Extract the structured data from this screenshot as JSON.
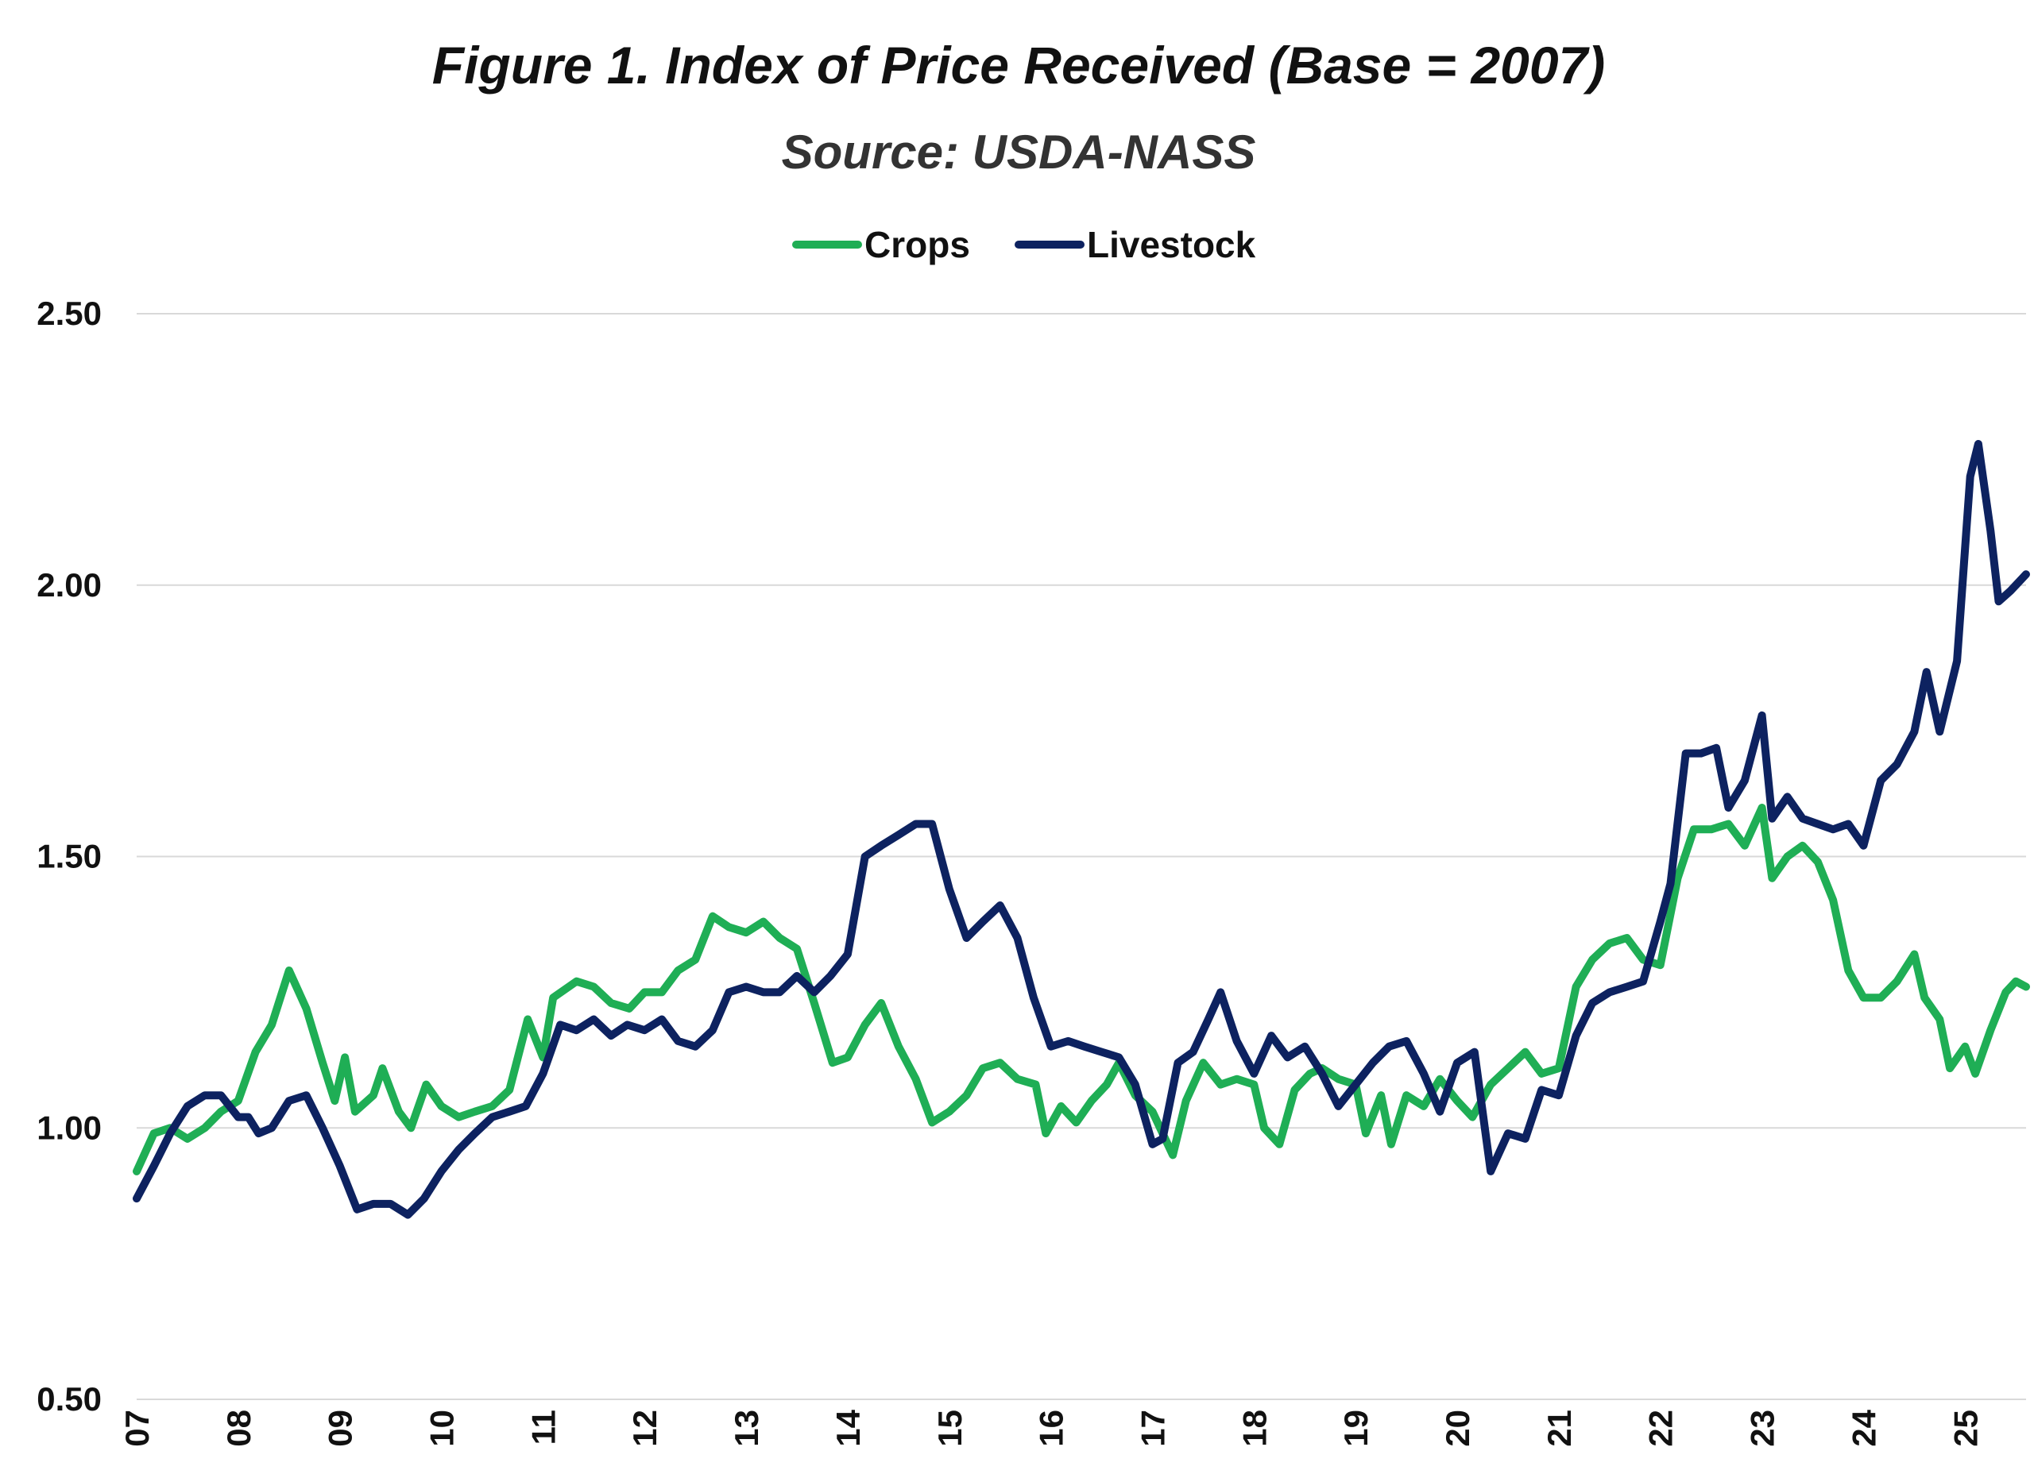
{
  "chart_data": {
    "type": "line",
    "title": "Figure 1.  Index of Price Received (Base = 2007)",
    "subtitle": "Source:  USDA-NASS",
    "xlabel": "",
    "ylabel": "",
    "x_tick_labels": [
      "07",
      "08",
      "09",
      "10",
      "11",
      "12",
      "13",
      "14",
      "15",
      "16",
      "17",
      "18",
      "19",
      "20",
      "21",
      "22",
      "23",
      "24",
      "25"
    ],
    "x_range": [
      2007,
      2025.6
    ],
    "ylim": [
      0.5,
      2.5
    ],
    "y_ticks": [
      0.5,
      1.0,
      1.5,
      2.0,
      2.5
    ],
    "y_tick_labels": [
      "0.50",
      "1.00",
      "1.50",
      "2.00",
      "2.50"
    ],
    "grid": "horizontal",
    "legend_position": "top-center",
    "series": [
      {
        "name": "Crops",
        "color": "#1fae55",
        "points": [
          [
            2007.0,
            0.92
          ],
          [
            2007.17,
            0.99
          ],
          [
            2007.33,
            1.0
          ],
          [
            2007.5,
            0.98
          ],
          [
            2007.67,
            1.0
          ],
          [
            2007.83,
            1.03
          ],
          [
            2008.0,
            1.05
          ],
          [
            2008.17,
            1.14
          ],
          [
            2008.33,
            1.19
          ],
          [
            2008.5,
            1.29
          ],
          [
            2008.67,
            1.22
          ],
          [
            2008.83,
            1.12
          ],
          [
            2008.95,
            1.05
          ],
          [
            2009.05,
            1.13
          ],
          [
            2009.15,
            1.03
          ],
          [
            2009.33,
            1.06
          ],
          [
            2009.42,
            1.11
          ],
          [
            2009.58,
            1.03
          ],
          [
            2009.7,
            1.0
          ],
          [
            2009.85,
            1.08
          ],
          [
            2010.0,
            1.04
          ],
          [
            2010.17,
            1.02
          ],
          [
            2010.33,
            1.03
          ],
          [
            2010.5,
            1.04
          ],
          [
            2010.67,
            1.07
          ],
          [
            2010.85,
            1.2
          ],
          [
            2011.0,
            1.13
          ],
          [
            2011.1,
            1.24
          ],
          [
            2011.33,
            1.27
          ],
          [
            2011.5,
            1.26
          ],
          [
            2011.67,
            1.23
          ],
          [
            2011.85,
            1.22
          ],
          [
            2012.0,
            1.25
          ],
          [
            2012.17,
            1.25
          ],
          [
            2012.33,
            1.29
          ],
          [
            2012.5,
            1.31
          ],
          [
            2012.67,
            1.39
          ],
          [
            2012.83,
            1.37
          ],
          [
            2013.0,
            1.36
          ],
          [
            2013.17,
            1.38
          ],
          [
            2013.33,
            1.35
          ],
          [
            2013.5,
            1.33
          ],
          [
            2013.67,
            1.23
          ],
          [
            2013.85,
            1.12
          ],
          [
            2014.0,
            1.13
          ],
          [
            2014.17,
            1.19
          ],
          [
            2014.33,
            1.23
          ],
          [
            2014.5,
            1.15
          ],
          [
            2014.67,
            1.09
          ],
          [
            2014.83,
            1.01
          ],
          [
            2015.0,
            1.03
          ],
          [
            2015.17,
            1.06
          ],
          [
            2015.33,
            1.11
          ],
          [
            2015.5,
            1.12
          ],
          [
            2015.67,
            1.09
          ],
          [
            2015.85,
            1.08
          ],
          [
            2015.95,
            0.99
          ],
          [
            2016.1,
            1.04
          ],
          [
            2016.25,
            1.01
          ],
          [
            2016.4,
            1.05
          ],
          [
            2016.55,
            1.08
          ],
          [
            2016.67,
            1.12
          ],
          [
            2016.83,
            1.06
          ],
          [
            2017.0,
            1.03
          ],
          [
            2017.1,
            0.99
          ],
          [
            2017.2,
            0.95
          ],
          [
            2017.33,
            1.05
          ],
          [
            2017.5,
            1.12
          ],
          [
            2017.67,
            1.08
          ],
          [
            2017.83,
            1.09
          ],
          [
            2018.0,
            1.08
          ],
          [
            2018.1,
            1.0
          ],
          [
            2018.25,
            0.97
          ],
          [
            2018.4,
            1.07
          ],
          [
            2018.55,
            1.1
          ],
          [
            2018.67,
            1.11
          ],
          [
            2018.83,
            1.09
          ],
          [
            2019.0,
            1.08
          ],
          [
            2019.1,
            0.99
          ],
          [
            2019.25,
            1.06
          ],
          [
            2019.35,
            0.97
          ],
          [
            2019.5,
            1.06
          ],
          [
            2019.67,
            1.04
          ],
          [
            2019.83,
            1.09
          ],
          [
            2020.0,
            1.05
          ],
          [
            2020.15,
            1.02
          ],
          [
            2020.33,
            1.08
          ],
          [
            2020.5,
            1.11
          ],
          [
            2020.67,
            1.14
          ],
          [
            2020.83,
            1.1
          ],
          [
            2021.0,
            1.11
          ],
          [
            2021.17,
            1.26
          ],
          [
            2021.33,
            1.31
          ],
          [
            2021.5,
            1.34
          ],
          [
            2021.67,
            1.35
          ],
          [
            2021.83,
            1.31
          ],
          [
            2022.0,
            1.3
          ],
          [
            2022.17,
            1.46
          ],
          [
            2022.33,
            1.55
          ],
          [
            2022.5,
            1.55
          ],
          [
            2022.67,
            1.56
          ],
          [
            2022.83,
            1.52
          ],
          [
            2023.0,
            1.59
          ],
          [
            2023.1,
            1.46
          ],
          [
            2023.25,
            1.5
          ],
          [
            2023.4,
            1.52
          ],
          [
            2023.55,
            1.49
          ],
          [
            2023.7,
            1.42
          ],
          [
            2023.85,
            1.29
          ],
          [
            2024.0,
            1.24
          ],
          [
            2024.17,
            1.24
          ],
          [
            2024.33,
            1.27
          ],
          [
            2024.5,
            1.32
          ],
          [
            2024.6,
            1.24
          ],
          [
            2024.75,
            1.2
          ],
          [
            2024.85,
            1.11
          ],
          [
            2025.0,
            1.15
          ],
          [
            2025.1,
            1.1
          ],
          [
            2025.25,
            1.18
          ],
          [
            2025.4,
            1.25
          ],
          [
            2025.5,
            1.27
          ],
          [
            2025.6,
            1.26
          ]
        ]
      },
      {
        "name": "Livestock",
        "color": "#0d2260",
        "points": [
          [
            2007.0,
            0.87
          ],
          [
            2007.17,
            0.93
          ],
          [
            2007.33,
            0.99
          ],
          [
            2007.5,
            1.04
          ],
          [
            2007.67,
            1.06
          ],
          [
            2007.83,
            1.06
          ],
          [
            2008.0,
            1.02
          ],
          [
            2008.1,
            1.02
          ],
          [
            2008.2,
            0.99
          ],
          [
            2008.33,
            1.0
          ],
          [
            2008.5,
            1.05
          ],
          [
            2008.67,
            1.06
          ],
          [
            2008.83,
            1.0
          ],
          [
            2009.0,
            0.93
          ],
          [
            2009.17,
            0.85
          ],
          [
            2009.33,
            0.86
          ],
          [
            2009.5,
            0.86
          ],
          [
            2009.67,
            0.84
          ],
          [
            2009.83,
            0.87
          ],
          [
            2010.0,
            0.92
          ],
          [
            2010.17,
            0.96
          ],
          [
            2010.33,
            0.99
          ],
          [
            2010.5,
            1.02
          ],
          [
            2010.67,
            1.03
          ],
          [
            2010.83,
            1.04
          ],
          [
            2011.0,
            1.1
          ],
          [
            2011.17,
            1.19
          ],
          [
            2011.33,
            1.18
          ],
          [
            2011.5,
            1.2
          ],
          [
            2011.67,
            1.17
          ],
          [
            2011.83,
            1.19
          ],
          [
            2012.0,
            1.18
          ],
          [
            2012.17,
            1.2
          ],
          [
            2012.33,
            1.16
          ],
          [
            2012.5,
            1.15
          ],
          [
            2012.67,
            1.18
          ],
          [
            2012.83,
            1.25
          ],
          [
            2013.0,
            1.26
          ],
          [
            2013.17,
            1.25
          ],
          [
            2013.33,
            1.25
          ],
          [
            2013.5,
            1.28
          ],
          [
            2013.67,
            1.25
          ],
          [
            2013.83,
            1.28
          ],
          [
            2014.0,
            1.32
          ],
          [
            2014.17,
            1.5
          ],
          [
            2014.33,
            1.52
          ],
          [
            2014.5,
            1.54
          ],
          [
            2014.67,
            1.56
          ],
          [
            2014.83,
            1.56
          ],
          [
            2015.0,
            1.44
          ],
          [
            2015.17,
            1.35
          ],
          [
            2015.33,
            1.38
          ],
          [
            2015.5,
            1.41
          ],
          [
            2015.67,
            1.35
          ],
          [
            2015.83,
            1.24
          ],
          [
            2016.0,
            1.15
          ],
          [
            2016.17,
            1.16
          ],
          [
            2016.33,
            1.15
          ],
          [
            2016.5,
            1.14
          ],
          [
            2016.67,
            1.13
          ],
          [
            2016.83,
            1.08
          ],
          [
            2017.0,
            0.97
          ],
          [
            2017.1,
            0.98
          ],
          [
            2017.25,
            1.12
          ],
          [
            2017.4,
            1.14
          ],
          [
            2017.55,
            1.2
          ],
          [
            2017.67,
            1.25
          ],
          [
            2017.83,
            1.16
          ],
          [
            2018.0,
            1.1
          ],
          [
            2018.17,
            1.17
          ],
          [
            2018.33,
            1.13
          ],
          [
            2018.5,
            1.15
          ],
          [
            2018.67,
            1.1
          ],
          [
            2018.83,
            1.04
          ],
          [
            2019.0,
            1.08
          ],
          [
            2019.17,
            1.12
          ],
          [
            2019.33,
            1.15
          ],
          [
            2019.5,
            1.16
          ],
          [
            2019.67,
            1.1
          ],
          [
            2019.83,
            1.03
          ],
          [
            2020.0,
            1.12
          ],
          [
            2020.17,
            1.14
          ],
          [
            2020.33,
            0.92
          ],
          [
            2020.5,
            0.99
          ],
          [
            2020.67,
            0.98
          ],
          [
            2020.83,
            1.07
          ],
          [
            2021.0,
            1.06
          ],
          [
            2021.17,
            1.17
          ],
          [
            2021.33,
            1.23
          ],
          [
            2021.5,
            1.25
          ],
          [
            2021.67,
            1.26
          ],
          [
            2021.83,
            1.27
          ],
          [
            2022.0,
            1.38
          ],
          [
            2022.1,
            1.45
          ],
          [
            2022.25,
            1.69
          ],
          [
            2022.4,
            1.69
          ],
          [
            2022.55,
            1.7
          ],
          [
            2022.67,
            1.59
          ],
          [
            2022.83,
            1.64
          ],
          [
            2023.0,
            1.76
          ],
          [
            2023.1,
            1.57
          ],
          [
            2023.25,
            1.61
          ],
          [
            2023.4,
            1.57
          ],
          [
            2023.55,
            1.56
          ],
          [
            2023.7,
            1.55
          ],
          [
            2023.85,
            1.56
          ],
          [
            2024.0,
            1.52
          ],
          [
            2024.17,
            1.64
          ],
          [
            2024.33,
            1.67
          ],
          [
            2024.5,
            1.73
          ],
          [
            2024.62,
            1.84
          ],
          [
            2024.75,
            1.73
          ],
          [
            2024.92,
            1.86
          ],
          [
            2025.05,
            2.2
          ],
          [
            2025.13,
            2.26
          ],
          [
            2025.25,
            2.1
          ],
          [
            2025.33,
            1.97
          ],
          [
            2025.45,
            1.99
          ],
          [
            2025.6,
            2.02
          ]
        ]
      }
    ]
  }
}
